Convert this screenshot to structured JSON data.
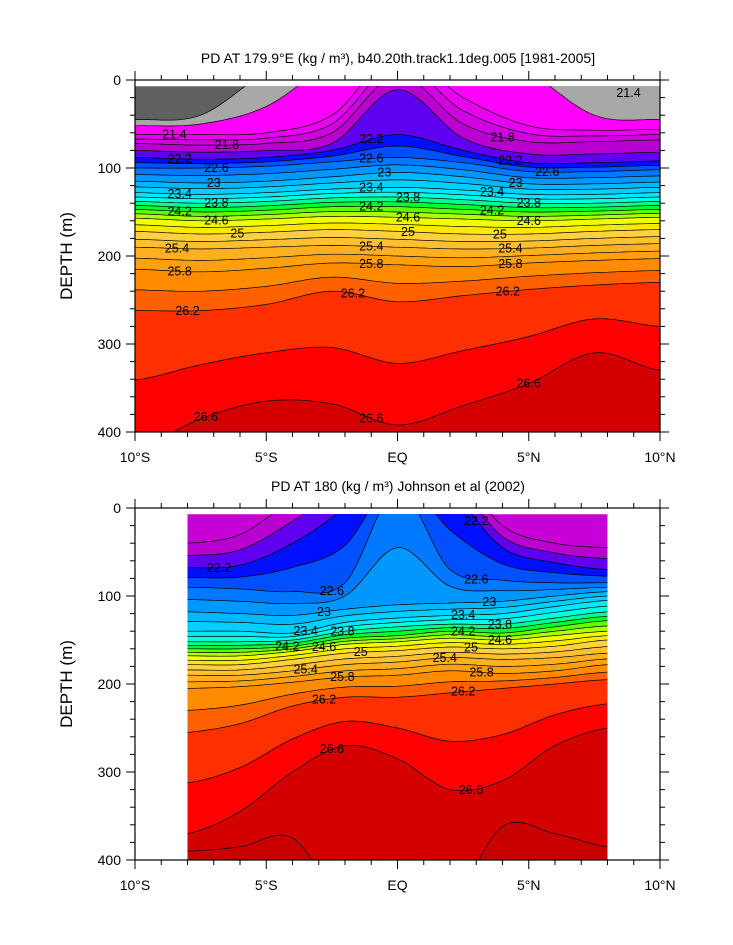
{
  "chart_data": [
    {
      "type": "contour",
      "title": "PD AT 179.9°E (kg / m³), b40.20th.track1.1deg.005 [1981-2005]",
      "ylabel": "DEPTH (m)",
      "xlim": [
        -10,
        10
      ],
      "ylim": [
        400,
        0
      ],
      "data_lat_range": [
        -10,
        10
      ],
      "x_ticks": [
        -10,
        -5,
        0,
        5,
        10
      ],
      "x_tick_labels": [
        "10°S",
        "5°S",
        "EQ",
        "5°N",
        "10°N"
      ],
      "y_ticks": [
        0,
        100,
        200,
        300,
        400
      ],
      "y_tick_labels": [
        "0",
        "100",
        "200",
        "300",
        "400"
      ],
      "top_color": "#606060",
      "lats": [
        -10,
        -7.5,
        -5,
        -2.5,
        0,
        2.5,
        5,
        7.5,
        10
      ],
      "isopycnal_depths": {
        "21.0": [
          45,
          40,
          -10,
          -50,
          -50,
          -50,
          -50,
          -50,
          -50
        ],
        "21.2": [
          52,
          50,
          30,
          -20,
          -50,
          -50,
          -10,
          40,
          45
        ],
        "21.4": [
          62,
          62,
          60,
          40,
          -30,
          20,
          52,
          57,
          56
        ],
        "21.8": [
          72,
          74,
          72,
          60,
          -5,
          50,
          70,
          70,
          68
        ],
        "22.0": [
          80,
          82,
          80,
          72,
          11,
          66,
          84,
          84,
          82
        ],
        "22.2": [
          88,
          90,
          88,
          80,
          62,
          80,
          94,
          94,
          92
        ],
        "22.6": [
          100,
          100,
          98,
          93,
          88,
          94,
          104,
          104,
          102
        ],
        "23.0": [
          115,
          117,
          115,
          110,
          105,
          110,
          118,
          118,
          116
        ],
        "23.4": [
          128,
          130,
          128,
          124,
          122,
          125,
          130,
          130,
          128
        ],
        "23.8": [
          138,
          140,
          138,
          134,
          133,
          136,
          140,
          140,
          138
        ],
        "24.2": [
          147,
          150,
          148,
          144,
          144,
          147,
          150,
          149,
          147
        ],
        "24.6": [
          157,
          160,
          158,
          155,
          156,
          158,
          160,
          158,
          156
        ],
        "25.0": [
          172,
          175,
          173,
          170,
          172,
          175,
          175,
          172,
          170
        ],
        "25.4": [
          190,
          192,
          190,
          188,
          190,
          192,
          191,
          188,
          186
        ],
        "25.8": [
          215,
          218,
          214,
          208,
          210,
          212,
          208,
          205,
          203
        ],
        "26.2": [
          262,
          262,
          255,
          240,
          252,
          245,
          238,
          233,
          230
        ],
        "26.6": [
          420,
          385,
          365,
          368,
          392,
          370,
          345,
          310,
          330
        ]
      },
      "contour_labels": [
        {
          "text": "21.4",
          "lat": -8.5,
          "level": "21.4"
        },
        {
          "text": "21.4",
          "lat": 8.8,
          "depth": 12
        },
        {
          "text": "21.8",
          "lat": -6.5,
          "level": "21.8"
        },
        {
          "text": "21.8",
          "lat": 4.0,
          "level": "21.8"
        },
        {
          "text": "22.2",
          "lat": -8.3,
          "level": "22.2"
        },
        {
          "text": "22.2",
          "lat": -1.0,
          "level": "22.2"
        },
        {
          "text": "22.2",
          "lat": 4.3,
          "level": "22.2"
        },
        {
          "text": "22.6",
          "lat": -8.3,
          "level": "22.6"
        },
        {
          "text": "22.6",
          "lat": -1.0,
          "level": "22.6"
        },
        {
          "text": "22.6",
          "lat": 4.3,
          "level": "22.6"
        },
        {
          "text": "23",
          "lat": -7.0,
          "level": "23.0"
        },
        {
          "text": "23",
          "lat": -0.5,
          "level": "23.0"
        },
        {
          "text": "23",
          "lat": 4.5,
          "level": "23.0"
        },
        {
          "text": "23.4",
          "lat": -8.3,
          "level": "23.4"
        },
        {
          "text": "23.4",
          "lat": -1.0,
          "level": "23.4"
        },
        {
          "text": "23.4",
          "lat": 4.3,
          "level": "23.4"
        },
        {
          "text": "23.8",
          "lat": -8.3,
          "level": "23.8"
        },
        {
          "text": "23.8",
          "lat": -1.0,
          "level": "23.8"
        },
        {
          "text": "23.8",
          "lat": 4.3,
          "level": "23.8"
        },
        {
          "text": "24.2",
          "lat": -8.3,
          "level": "24.2"
        },
        {
          "text": "24.2",
          "lat": -1.0,
          "level": "24.2"
        },
        {
          "text": "24.2",
          "lat": 4.3,
          "level": "24.2"
        },
        {
          "text": "24.6",
          "lat": -8.3,
          "level": "24.6"
        },
        {
          "text": "24.6",
          "lat": -1.0,
          "level": "24.6"
        },
        {
          "text": "24.6",
          "lat": 4.3,
          "level": "24.6"
        },
        {
          "text": "25",
          "lat": -6.8,
          "level": "25.0"
        },
        {
          "text": "25",
          "lat": -0.3,
          "level": "25.0"
        },
        {
          "text": "25",
          "lat": 4.6,
          "level": "25.0"
        },
        {
          "text": "25.4",
          "lat": -8.4,
          "level": "25.4"
        },
        {
          "text": "25.4",
          "lat": -1.0,
          "level": "25.4"
        },
        {
          "text": "25.4",
          "lat": 4.3,
          "level": "25.4"
        },
        {
          "text": "25.8",
          "lat": -8.3,
          "level": "25.8"
        },
        {
          "text": "25.8",
          "lat": -1.0,
          "level": "25.8"
        },
        {
          "text": "25.8",
          "lat": 4.3,
          "level": "25.8"
        },
        {
          "text": "26.2",
          "lat": -8.0,
          "level": "26.2"
        },
        {
          "text": "26.2",
          "lat": -1.7,
          "level": "26.2"
        },
        {
          "text": "26.2",
          "lat": 4.2,
          "level": "26.2"
        },
        {
          "text": "26.6",
          "lat": -7.3,
          "level": "26.6"
        },
        {
          "text": "26.6",
          "lat": -1.0,
          "level": "26.6"
        },
        {
          "text": "26.6",
          "lat": 5.0,
          "level": "26.6"
        }
      ]
    },
    {
      "type": "contour",
      "title": "PD AT 180 (kg / m³) Johnson et al (2002)",
      "ylabel": "DEPTH (m)",
      "xlim": [
        -10,
        10
      ],
      "ylim": [
        400,
        0
      ],
      "data_lat_range": [
        -8,
        8
      ],
      "x_ticks": [
        -10,
        -5,
        0,
        5,
        10
      ],
      "x_tick_labels": [
        "10°S",
        "5°S",
        "EQ",
        "5°N",
        "10°N"
      ],
      "y_ticks": [
        0,
        100,
        200,
        300,
        400
      ],
      "y_tick_labels": [
        "0",
        "100",
        "200",
        "300",
        "400"
      ],
      "top_color": "#c800d8",
      "lats": [
        -8,
        -6,
        -4,
        -2,
        0,
        2,
        4,
        6,
        8
      ],
      "isopycnal_depths": {
        "21.8": [
          40,
          30,
          -10,
          -50,
          -50,
          -50,
          20,
          40,
          45
        ],
        "22.2": [
          68,
          65,
          40,
          0,
          -50,
          -20,
          45,
          62,
          70
        ],
        "22.6": [
          90,
          92,
          95,
          85,
          -20,
          70,
          82,
          85,
          85
        ],
        "23.0": [
          118,
          120,
          122,
          115,
          110,
          108,
          106,
          100,
          95
        ],
        "23.4": [
          140,
          140,
          142,
          130,
          125,
          122,
          120,
          112,
          105
        ],
        "23.8": [
          152,
          152,
          150,
          140,
          135,
          132,
          132,
          125,
          118
        ],
        "24.2": [
          160,
          160,
          157,
          148,
          145,
          140,
          142,
          135,
          128
        ],
        "24.6": [
          168,
          168,
          163,
          155,
          152,
          148,
          150,
          145,
          140
        ],
        "25.0": [
          178,
          178,
          172,
          165,
          162,
          158,
          160,
          157,
          150
        ],
        "25.4": [
          190,
          190,
          185,
          178,
          175,
          170,
          172,
          170,
          165
        ],
        "25.8": [
          205,
          203,
          198,
          192,
          190,
          185,
          188,
          185,
          178
        ],
        "26.2": [
          255,
          245,
          225,
          215,
          215,
          210,
          205,
          200,
          195
        ],
        "26.6": [
          370,
          345,
          300,
          270,
          285,
          320,
          310,
          270,
          250
        ],
        "26.8": [
          390,
          385,
          375,
          450,
          450,
          450,
          362,
          370,
          385
        ]
      },
      "contour_labels": [
        {
          "text": "22.2",
          "lat": -6.8,
          "level": "22.2"
        },
        {
          "text": "22.2",
          "lat": 3.0,
          "level": "22.2"
        },
        {
          "text": "22.6",
          "lat": -2.5,
          "level": "22.6"
        },
        {
          "text": "22.6",
          "lat": 3.0,
          "level": "22.6"
        },
        {
          "text": "23",
          "lat": -2.8,
          "level": "23.0"
        },
        {
          "text": "23",
          "lat": 3.5,
          "level": "23.0"
        },
        {
          "text": "23.4",
          "lat": -3.5,
          "level": "23.4"
        },
        {
          "text": "23.4",
          "lat": 2.5,
          "level": "23.4"
        },
        {
          "text": "23.8",
          "lat": -3.5,
          "level": "23.8"
        },
        {
          "text": "23.8",
          "lat": 2.5,
          "level": "23.8"
        },
        {
          "text": "24.2",
          "lat": -3.5,
          "level": "24.2"
        },
        {
          "text": "24.2",
          "lat": 2.5,
          "level": "24.2"
        },
        {
          "text": "24.6",
          "lat": -3.5,
          "level": "24.6"
        },
        {
          "text": "24.6",
          "lat": 2.5,
          "level": "24.6"
        },
        {
          "text": "25",
          "lat": -2.8,
          "level": "25.0"
        },
        {
          "text": "25",
          "lat": 2.8,
          "level": "25.0"
        },
        {
          "text": "25.4",
          "lat": -3.5,
          "level": "25.4"
        },
        {
          "text": "25.4",
          "lat": 2.5,
          "level": "25.4"
        },
        {
          "text": "25.8",
          "lat": -3.5,
          "level": "25.8"
        },
        {
          "text": "25.8",
          "lat": 2.5,
          "level": "25.8"
        },
        {
          "text": "26.2",
          "lat": -2.8,
          "level": "26.2"
        },
        {
          "text": "26.2",
          "lat": 2.5,
          "level": "26.2"
        },
        {
          "text": "26.6",
          "lat": -2.5,
          "level": "26.6"
        },
        {
          "text": "26.6",
          "lat": 2.8,
          "level": "26.6"
        }
      ]
    }
  ],
  "band_colors": {
    "21.0": "#a8a8a8",
    "21.2": "#ff00ff",
    "21.4": "#e800f0",
    "21.6": "#d000e0",
    "21.8": "#b800d0",
    "22.0": "#6000f0",
    "22.2": "#0010ff",
    "22.4": "#0050ff",
    "22.6": "#0078ff",
    "22.8": "#0098ff",
    "23.0": "#00b8ff",
    "23.2": "#00d0ff",
    "23.4": "#00e8ff",
    "23.6": "#00ffe0",
    "23.8": "#00ff90",
    "24.0": "#00ff30",
    "24.2": "#60ff00",
    "24.4": "#b0ff00",
    "24.6": "#f0ff00",
    "24.8": "#ffe800",
    "25.0": "#ffd040",
    "25.2": "#ffc030",
    "25.4": "#ffb020",
    "25.6": "#ffa010",
    "25.8": "#ff8c00",
    "26.0": "#ff6000",
    "26.2": "#ff3000",
    "26.4": "#ff0000",
    "26.6": "#d40000",
    "26.8": "#c80000"
  }
}
